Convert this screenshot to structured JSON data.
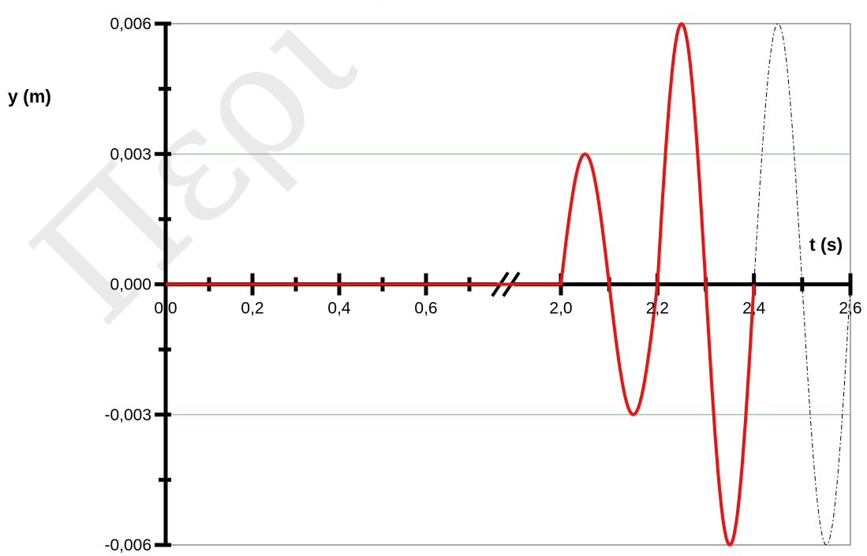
{
  "chart_data": {
    "type": "line",
    "title": "",
    "xlabel": "t (s)",
    "ylabel": "y (m)",
    "xlim": [
      0,
      2.6
    ],
    "ylim": [
      -0.006,
      0.006
    ],
    "axis_break": {
      "from": 0.7,
      "to": 2.0
    },
    "x_tick_labels": [
      {
        "t": 0.0,
        "label": "0,0"
      },
      {
        "t": 0.2,
        "label": "0,2"
      },
      {
        "t": 0.4,
        "label": "0,4"
      },
      {
        "t": 0.6,
        "label": "0,6"
      },
      {
        "t": 2.0,
        "label": "2,0"
      },
      {
        "t": 2.2,
        "label": "2,2"
      },
      {
        "t": 2.4,
        "label": "2,4"
      },
      {
        "t": 2.6,
        "label": "2,6"
      }
    ],
    "y_tick_labels": [
      {
        "y": 0.006,
        "label": "0,006"
      },
      {
        "y": 0.003,
        "label": "0,003"
      },
      {
        "y": 0.0,
        "label": "0,000"
      },
      {
        "y": -0.003,
        "label": "-0,003"
      },
      {
        "y": -0.006,
        "label": "-0,006"
      }
    ],
    "grid": "horizontal gridlines at ±0,003",
    "series": [
      {
        "style": "solid red",
        "x": [
          0.0,
          0.7,
          2.0,
          2.05,
          2.1,
          2.15,
          2.2,
          2.25,
          2.3,
          2.35,
          2.4
        ],
        "y": [
          0.0,
          0.0,
          0.0,
          0.003,
          0.0,
          -0.003,
          0.0,
          0.006,
          0.0,
          -0.006,
          0.0
        ]
      },
      {
        "style": "dashed black",
        "x": [
          2.4,
          2.45,
          2.5,
          2.55,
          2.6
        ],
        "y": [
          0.0,
          0.006,
          0.0,
          -0.006,
          0.0
        ]
      }
    ],
    "watermark_text": "Περι -",
    "colors": {
      "curve": "#ee1111",
      "grid": "#33dd33",
      "axis": "#000000",
      "dashed": "#000000"
    }
  }
}
